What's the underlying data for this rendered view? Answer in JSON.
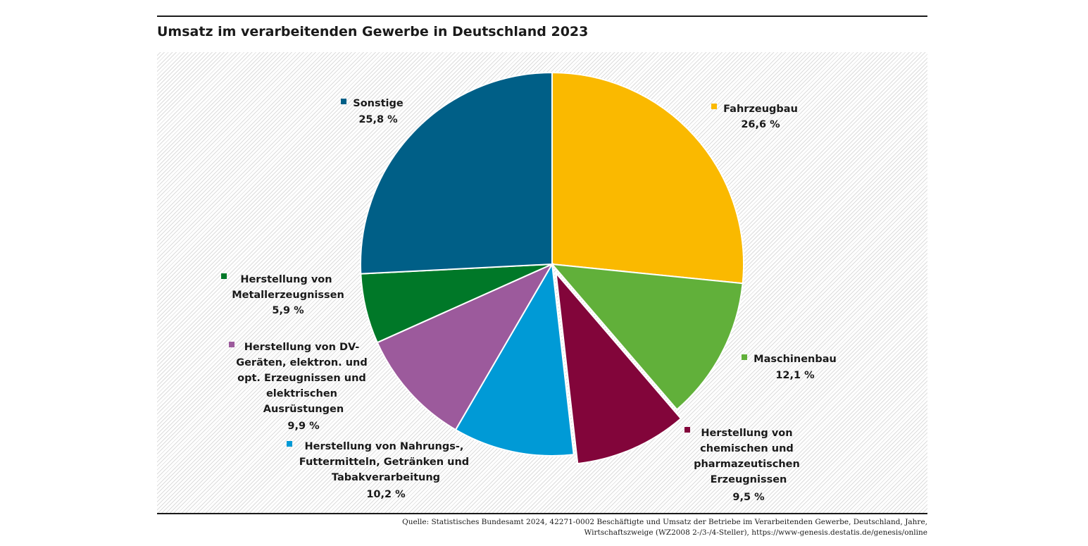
{
  "chart_data": {
    "type": "pie",
    "title": "Umsatz im verarbeitenden Gewerbe in Deutschland 2023",
    "slices": [
      {
        "name": "Fahrzeugbau",
        "value": 26.6,
        "label": "26,6 %",
        "color": "#fab900"
      },
      {
        "name": "Maschinenbau",
        "value": 12.1,
        "label": "12,1 %",
        "color": "#61b03a"
      },
      {
        "name": "Herstellung von chemischen und pharmazeutischen Erzeugnissen",
        "value": 9.5,
        "label": "9,5 %",
        "color": "#82053a",
        "exploded": true
      },
      {
        "name": "Herstellung von Nahrungs-, Futtermitteln, Getränken und Tabakverarbeitung",
        "value": 10.2,
        "label": "10,2 %",
        "color": "#009ad6"
      },
      {
        "name": "Herstellung von DV-Geräten, elektron. und opt. Erzeugnissen und elektrischen Ausrüstungen",
        "value": 9.9,
        "label": "9,9 %",
        "color": "#9c5a9c"
      },
      {
        "name": "Herstellung von Metallerzeugnissen",
        "value": 5.9,
        "label": "5,9 %",
        "color": "#007828"
      },
      {
        "name": "Sonstige",
        "value": 25.8,
        "label": "25,8 %",
        "color": "#005f87"
      }
    ]
  },
  "source": {
    "line1": "Quelle: Statistisches Bundesamt 2024, 42271-0002 Beschäftigte und Umsatz der Betriebe im Verarbeitenden Gewerbe, Deutschland, Jahre,",
    "line2": "Wirtschaftszweige (WZ2008 2-/3-/4-Steller), https://www-genesis.destatis.de/genesis/online"
  }
}
